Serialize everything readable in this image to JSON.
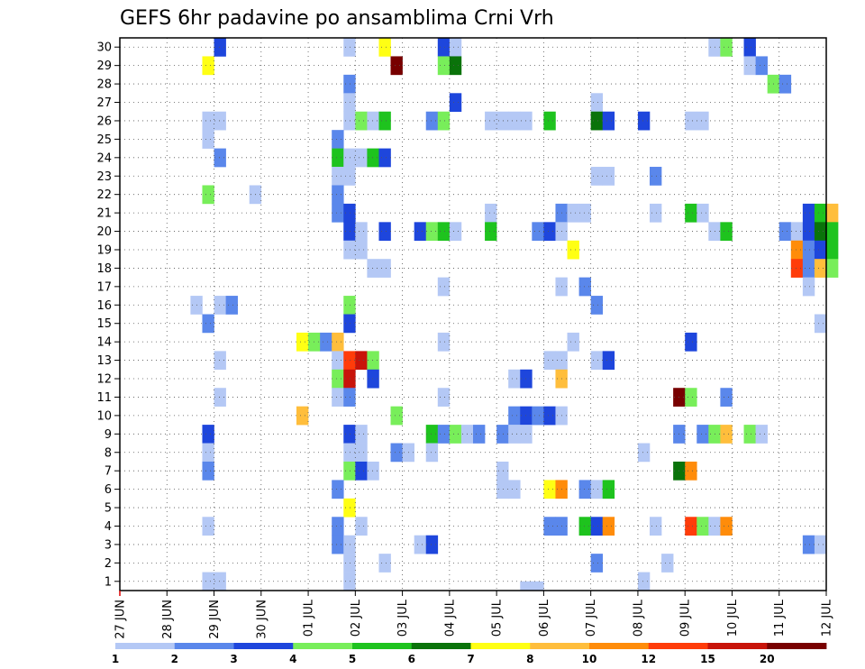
{
  "chart_data": {
    "type": "heatmap",
    "title": "GEFS 6hr padavine po ansamblima Crni Vrh",
    "xlabel": "",
    "ylabel": "",
    "x_ticks": [
      "27 JUN",
      "28 JUN",
      "29 JUN",
      "30 JUN",
      "01 JUL",
      "02 JUL",
      "03 JUL",
      "04 JUL",
      "05 JUL",
      "06 JUL",
      "07 JUL",
      "08 JUL",
      "09 JUL",
      "10 JUL",
      "11 JUL",
      "12 JUL"
    ],
    "y_ticks": [
      1,
      2,
      3,
      4,
      5,
      6,
      7,
      8,
      9,
      10,
      11,
      12,
      13,
      14,
      15,
      16,
      17,
      18,
      19,
      20,
      21,
      22,
      23,
      24,
      25,
      26,
      27,
      28,
      29,
      30
    ],
    "xlim_days": [
      0,
      15
    ],
    "ylim": [
      0.5,
      30.5
    ],
    "grid": true,
    "time_step_hours": 6,
    "colorbar": {
      "labels": [
        "1",
        "2",
        "3",
        "4",
        "5",
        "6",
        "7",
        "8",
        "10",
        "12",
        "15",
        "20"
      ],
      "colors": [
        "#b4c8f5",
        "#5a87eb",
        "#1e46dc",
        "#78ee5a",
        "#1ec31e",
        "#0a730a",
        "#ffff14",
        "#ffbe3c",
        "#ff8c0a",
        "#ff3c0a",
        "#c8140a",
        "#780000"
      ]
    },
    "cells": [
      {
        "y": 30,
        "t": 8,
        "c": 2
      },
      {
        "y": 30,
        "t": 19,
        "c": 0
      },
      {
        "y": 30,
        "t": 22,
        "c": 6
      },
      {
        "y": 30,
        "t": 27,
        "c": 2
      },
      {
        "y": 30,
        "t": 28,
        "c": 0
      },
      {
        "y": 30,
        "t": 50,
        "c": 0
      },
      {
        "y": 30,
        "t": 51,
        "c": 3
      },
      {
        "y": 30,
        "t": 53,
        "c": 2
      },
      {
        "y": 29,
        "t": 7,
        "c": 6
      },
      {
        "y": 29,
        "t": 23,
        "c": 11
      },
      {
        "y": 29,
        "t": 27,
        "c": 3
      },
      {
        "y": 29,
        "t": 28,
        "c": 5
      },
      {
        "y": 29,
        "t": 53,
        "c": 0
      },
      {
        "y": 29,
        "t": 54,
        "c": 1
      },
      {
        "y": 28,
        "t": 19,
        "c": 1
      },
      {
        "y": 28,
        "t": 55,
        "c": 3
      },
      {
        "y": 28,
        "t": 56,
        "c": 1
      },
      {
        "y": 27,
        "t": 19,
        "c": 0
      },
      {
        "y": 27,
        "t": 28,
        "c": 2
      },
      {
        "y": 27,
        "t": 40,
        "c": 0
      },
      {
        "y": 26,
        "t": 7,
        "c": 0
      },
      {
        "y": 26,
        "t": 8,
        "c": 0
      },
      {
        "y": 26,
        "t": 19,
        "c": 0
      },
      {
        "y": 26,
        "t": 20,
        "c": 3
      },
      {
        "y": 26,
        "t": 21,
        "c": 0
      },
      {
        "y": 26,
        "t": 22,
        "c": 4
      },
      {
        "y": 26,
        "t": 26,
        "c": 1
      },
      {
        "y": 26,
        "t": 27,
        "c": 3
      },
      {
        "y": 26,
        "t": 31,
        "c": 0
      },
      {
        "y": 26,
        "t": 32,
        "c": 0
      },
      {
        "y": 26,
        "t": 33,
        "c": 0
      },
      {
        "y": 26,
        "t": 34,
        "c": 0
      },
      {
        "y": 26,
        "t": 36,
        "c": 4
      },
      {
        "y": 26,
        "t": 40,
        "c": 5
      },
      {
        "y": 26,
        "t": 41,
        "c": 2
      },
      {
        "y": 26,
        "t": 44,
        "c": 2
      },
      {
        "y": 26,
        "t": 48,
        "c": 0
      },
      {
        "y": 26,
        "t": 49,
        "c": 0
      },
      {
        "y": 25,
        "t": 7,
        "c": 0
      },
      {
        "y": 25,
        "t": 18,
        "c": 1
      },
      {
        "y": 24,
        "t": 8,
        "c": 1
      },
      {
        "y": 24,
        "t": 18,
        "c": 4
      },
      {
        "y": 24,
        "t": 19,
        "c": 0
      },
      {
        "y": 24,
        "t": 20,
        "c": 0
      },
      {
        "y": 24,
        "t": 21,
        "c": 4
      },
      {
        "y": 24,
        "t": 22,
        "c": 2
      },
      {
        "y": 23,
        "t": 18,
        "c": 0
      },
      {
        "y": 23,
        "t": 19,
        "c": 0
      },
      {
        "y": 23,
        "t": 40,
        "c": 0
      },
      {
        "y": 23,
        "t": 41,
        "c": 0
      },
      {
        "y": 23,
        "t": 45,
        "c": 1
      },
      {
        "y": 22,
        "t": 7,
        "c": 3
      },
      {
        "y": 22,
        "t": 11,
        "c": 0
      },
      {
        "y": 22,
        "t": 18,
        "c": 1
      },
      {
        "y": 21,
        "t": 18,
        "c": 1
      },
      {
        "y": 21,
        "t": 19,
        "c": 2
      },
      {
        "y": 21,
        "t": 31,
        "c": 0
      },
      {
        "y": 21,
        "t": 37,
        "c": 1
      },
      {
        "y": 21,
        "t": 38,
        "c": 0
      },
      {
        "y": 21,
        "t": 39,
        "c": 0
      },
      {
        "y": 21,
        "t": 45,
        "c": 0
      },
      {
        "y": 21,
        "t": 48,
        "c": 4
      },
      {
        "y": 21,
        "t": 49,
        "c": 0
      },
      {
        "y": 21,
        "t": 58,
        "c": 2
      },
      {
        "y": 21,
        "t": 59,
        "c": 4
      },
      {
        "y": 21,
        "t": 60,
        "c": 7
      },
      {
        "y": 20,
        "t": 19,
        "c": 2
      },
      {
        "y": 20,
        "t": 20,
        "c": 0
      },
      {
        "y": 20,
        "t": 22,
        "c": 2
      },
      {
        "y": 20,
        "t": 25,
        "c": 2
      },
      {
        "y": 20,
        "t": 26,
        "c": 3
      },
      {
        "y": 20,
        "t": 27,
        "c": 4
      },
      {
        "y": 20,
        "t": 28,
        "c": 0
      },
      {
        "y": 20,
        "t": 31,
        "c": 4
      },
      {
        "y": 20,
        "t": 35,
        "c": 1
      },
      {
        "y": 20,
        "t": 36,
        "c": 2
      },
      {
        "y": 20,
        "t": 37,
        "c": 0
      },
      {
        "y": 20,
        "t": 50,
        "c": 0
      },
      {
        "y": 20,
        "t": 51,
        "c": 4
      },
      {
        "y": 20,
        "t": 56,
        "c": 1
      },
      {
        "y": 20,
        "t": 57,
        "c": 0
      },
      {
        "y": 20,
        "t": 58,
        "c": 2
      },
      {
        "y": 20,
        "t": 59,
        "c": 5
      },
      {
        "y": 20,
        "t": 60,
        "c": 4
      },
      {
        "y": 19,
        "t": 19,
        "c": 0
      },
      {
        "y": 19,
        "t": 20,
        "c": 0
      },
      {
        "y": 19,
        "t": 38,
        "c": 6
      },
      {
        "y": 19,
        "t": 57,
        "c": 8
      },
      {
        "y": 19,
        "t": 58,
        "c": 1
      },
      {
        "y": 19,
        "t": 59,
        "c": 2
      },
      {
        "y": 19,
        "t": 60,
        "c": 4
      },
      {
        "y": 18,
        "t": 21,
        "c": 0
      },
      {
        "y": 18,
        "t": 22,
        "c": 0
      },
      {
        "y": 18,
        "t": 57,
        "c": 9
      },
      {
        "y": 18,
        "t": 58,
        "c": 1
      },
      {
        "y": 18,
        "t": 59,
        "c": 7
      },
      {
        "y": 18,
        "t": 60,
        "c": 3
      },
      {
        "y": 17,
        "t": 27,
        "c": 0
      },
      {
        "y": 17,
        "t": 37,
        "c": 0
      },
      {
        "y": 17,
        "t": 39,
        "c": 1
      },
      {
        "y": 17,
        "t": 58,
        "c": 0
      },
      {
        "y": 16,
        "t": 6,
        "c": 0
      },
      {
        "y": 16,
        "t": 8,
        "c": 0
      },
      {
        "y": 16,
        "t": 9,
        "c": 1
      },
      {
        "y": 16,
        "t": 19,
        "c": 3
      },
      {
        "y": 16,
        "t": 40,
        "c": 1
      },
      {
        "y": 15,
        "t": 7,
        "c": 1
      },
      {
        "y": 15,
        "t": 19,
        "c": 2
      },
      {
        "y": 15,
        "t": 59,
        "c": 0
      },
      {
        "y": 14,
        "t": 15,
        "c": 6
      },
      {
        "y": 14,
        "t": 16,
        "c": 3
      },
      {
        "y": 14,
        "t": 17,
        "c": 1
      },
      {
        "y": 14,
        "t": 18,
        "c": 7
      },
      {
        "y": 14,
        "t": 27,
        "c": 0
      },
      {
        "y": 14,
        "t": 38,
        "c": 0
      },
      {
        "y": 14,
        "t": 48,
        "c": 2
      },
      {
        "y": 13,
        "t": 8,
        "c": 0
      },
      {
        "y": 13,
        "t": 18,
        "c": 0
      },
      {
        "y": 13,
        "t": 19,
        "c": 9
      },
      {
        "y": 13,
        "t": 20,
        "c": 10
      },
      {
        "y": 13,
        "t": 21,
        "c": 3
      },
      {
        "y": 13,
        "t": 36,
        "c": 0
      },
      {
        "y": 13,
        "t": 37,
        "c": 0
      },
      {
        "y": 13,
        "t": 40,
        "c": 0
      },
      {
        "y": 13,
        "t": 41,
        "c": 2
      },
      {
        "y": 12,
        "t": 18,
        "c": 3
      },
      {
        "y": 12,
        "t": 19,
        "c": 10
      },
      {
        "y": 12,
        "t": 21,
        "c": 2
      },
      {
        "y": 12,
        "t": 33,
        "c": 0
      },
      {
        "y": 12,
        "t": 34,
        "c": 2
      },
      {
        "y": 12,
        "t": 37,
        "c": 7
      },
      {
        "y": 11,
        "t": 8,
        "c": 0
      },
      {
        "y": 11,
        "t": 18,
        "c": 0
      },
      {
        "y": 11,
        "t": 19,
        "c": 1
      },
      {
        "y": 11,
        "t": 27,
        "c": 0
      },
      {
        "y": 11,
        "t": 47,
        "c": 11
      },
      {
        "y": 11,
        "t": 48,
        "c": 3
      },
      {
        "y": 11,
        "t": 51,
        "c": 1
      },
      {
        "y": 10,
        "t": 15,
        "c": 7
      },
      {
        "y": 10,
        "t": 23,
        "c": 3
      },
      {
        "y": 10,
        "t": 33,
        "c": 1
      },
      {
        "y": 10,
        "t": 34,
        "c": 2
      },
      {
        "y": 10,
        "t": 35,
        "c": 1
      },
      {
        "y": 10,
        "t": 36,
        "c": 2
      },
      {
        "y": 10,
        "t": 37,
        "c": 0
      },
      {
        "y": 9,
        "t": 7,
        "c": 2
      },
      {
        "y": 9,
        "t": 19,
        "c": 2
      },
      {
        "y": 9,
        "t": 20,
        "c": 0
      },
      {
        "y": 9,
        "t": 26,
        "c": 4
      },
      {
        "y": 9,
        "t": 27,
        "c": 1
      },
      {
        "y": 9,
        "t": 28,
        "c": 3
      },
      {
        "y": 9,
        "t": 29,
        "c": 0
      },
      {
        "y": 9,
        "t": 30,
        "c": 1
      },
      {
        "y": 9,
        "t": 32,
        "c": 1
      },
      {
        "y": 9,
        "t": 33,
        "c": 0
      },
      {
        "y": 9,
        "t": 34,
        "c": 0
      },
      {
        "y": 9,
        "t": 47,
        "c": 1
      },
      {
        "y": 9,
        "t": 49,
        "c": 1
      },
      {
        "y": 9,
        "t": 50,
        "c": 3
      },
      {
        "y": 9,
        "t": 51,
        "c": 7
      },
      {
        "y": 9,
        "t": 53,
        "c": 3
      },
      {
        "y": 9,
        "t": 54,
        "c": 0
      },
      {
        "y": 8,
        "t": 7,
        "c": 0
      },
      {
        "y": 8,
        "t": 19,
        "c": 0
      },
      {
        "y": 8,
        "t": 20,
        "c": 0
      },
      {
        "y": 8,
        "t": 23,
        "c": 1
      },
      {
        "y": 8,
        "t": 24,
        "c": 0
      },
      {
        "y": 8,
        "t": 26,
        "c": 0
      },
      {
        "y": 8,
        "t": 44,
        "c": 0
      },
      {
        "y": 7,
        "t": 7,
        "c": 1
      },
      {
        "y": 7,
        "t": 19,
        "c": 3
      },
      {
        "y": 7,
        "t": 20,
        "c": 2
      },
      {
        "y": 7,
        "t": 21,
        "c": 0
      },
      {
        "y": 7,
        "t": 32,
        "c": 0
      },
      {
        "y": 7,
        "t": 47,
        "c": 5
      },
      {
        "y": 7,
        "t": 48,
        "c": 8
      },
      {
        "y": 6,
        "t": 18,
        "c": 1
      },
      {
        "y": 6,
        "t": 32,
        "c": 0
      },
      {
        "y": 6,
        "t": 33,
        "c": 0
      },
      {
        "y": 6,
        "t": 36,
        "c": 6
      },
      {
        "y": 6,
        "t": 37,
        "c": 8
      },
      {
        "y": 6,
        "t": 39,
        "c": 1
      },
      {
        "y": 6,
        "t": 40,
        "c": 0
      },
      {
        "y": 6,
        "t": 41,
        "c": 4
      },
      {
        "y": 5,
        "t": 19,
        "c": 6
      },
      {
        "y": 4,
        "t": 7,
        "c": 0
      },
      {
        "y": 4,
        "t": 18,
        "c": 1
      },
      {
        "y": 4,
        "t": 20,
        "c": 0
      },
      {
        "y": 4,
        "t": 36,
        "c": 1
      },
      {
        "y": 4,
        "t": 37,
        "c": 1
      },
      {
        "y": 4,
        "t": 39,
        "c": 4
      },
      {
        "y": 4,
        "t": 40,
        "c": 2
      },
      {
        "y": 4,
        "t": 41,
        "c": 8
      },
      {
        "y": 4,
        "t": 45,
        "c": 0
      },
      {
        "y": 4,
        "t": 48,
        "c": 9
      },
      {
        "y": 4,
        "t": 49,
        "c": 3
      },
      {
        "y": 4,
        "t": 50,
        "c": 0
      },
      {
        "y": 4,
        "t": 51,
        "c": 8
      },
      {
        "y": 3,
        "t": 18,
        "c": 1
      },
      {
        "y": 3,
        "t": 19,
        "c": 0
      },
      {
        "y": 3,
        "t": 25,
        "c": 0
      },
      {
        "y": 3,
        "t": 26,
        "c": 2
      },
      {
        "y": 3,
        "t": 58,
        "c": 1
      },
      {
        "y": 3,
        "t": 59,
        "c": 0
      },
      {
        "y": 2,
        "t": 19,
        "c": 0
      },
      {
        "y": 2,
        "t": 22,
        "c": 0
      },
      {
        "y": 2,
        "t": 40,
        "c": 1
      },
      {
        "y": 2,
        "t": 46,
        "c": 0
      },
      {
        "y": 1,
        "t": 7,
        "c": 0
      },
      {
        "y": 1,
        "t": 8,
        "c": 0
      },
      {
        "y": 1,
        "t": 19,
        "c": 0
      },
      {
        "y": 1,
        "t": 44,
        "c": 0
      },
      {
        "y": 0.5,
        "t": 34,
        "c": 0
      },
      {
        "y": 0.5,
        "t": 35,
        "c": 0
      }
    ]
  }
}
